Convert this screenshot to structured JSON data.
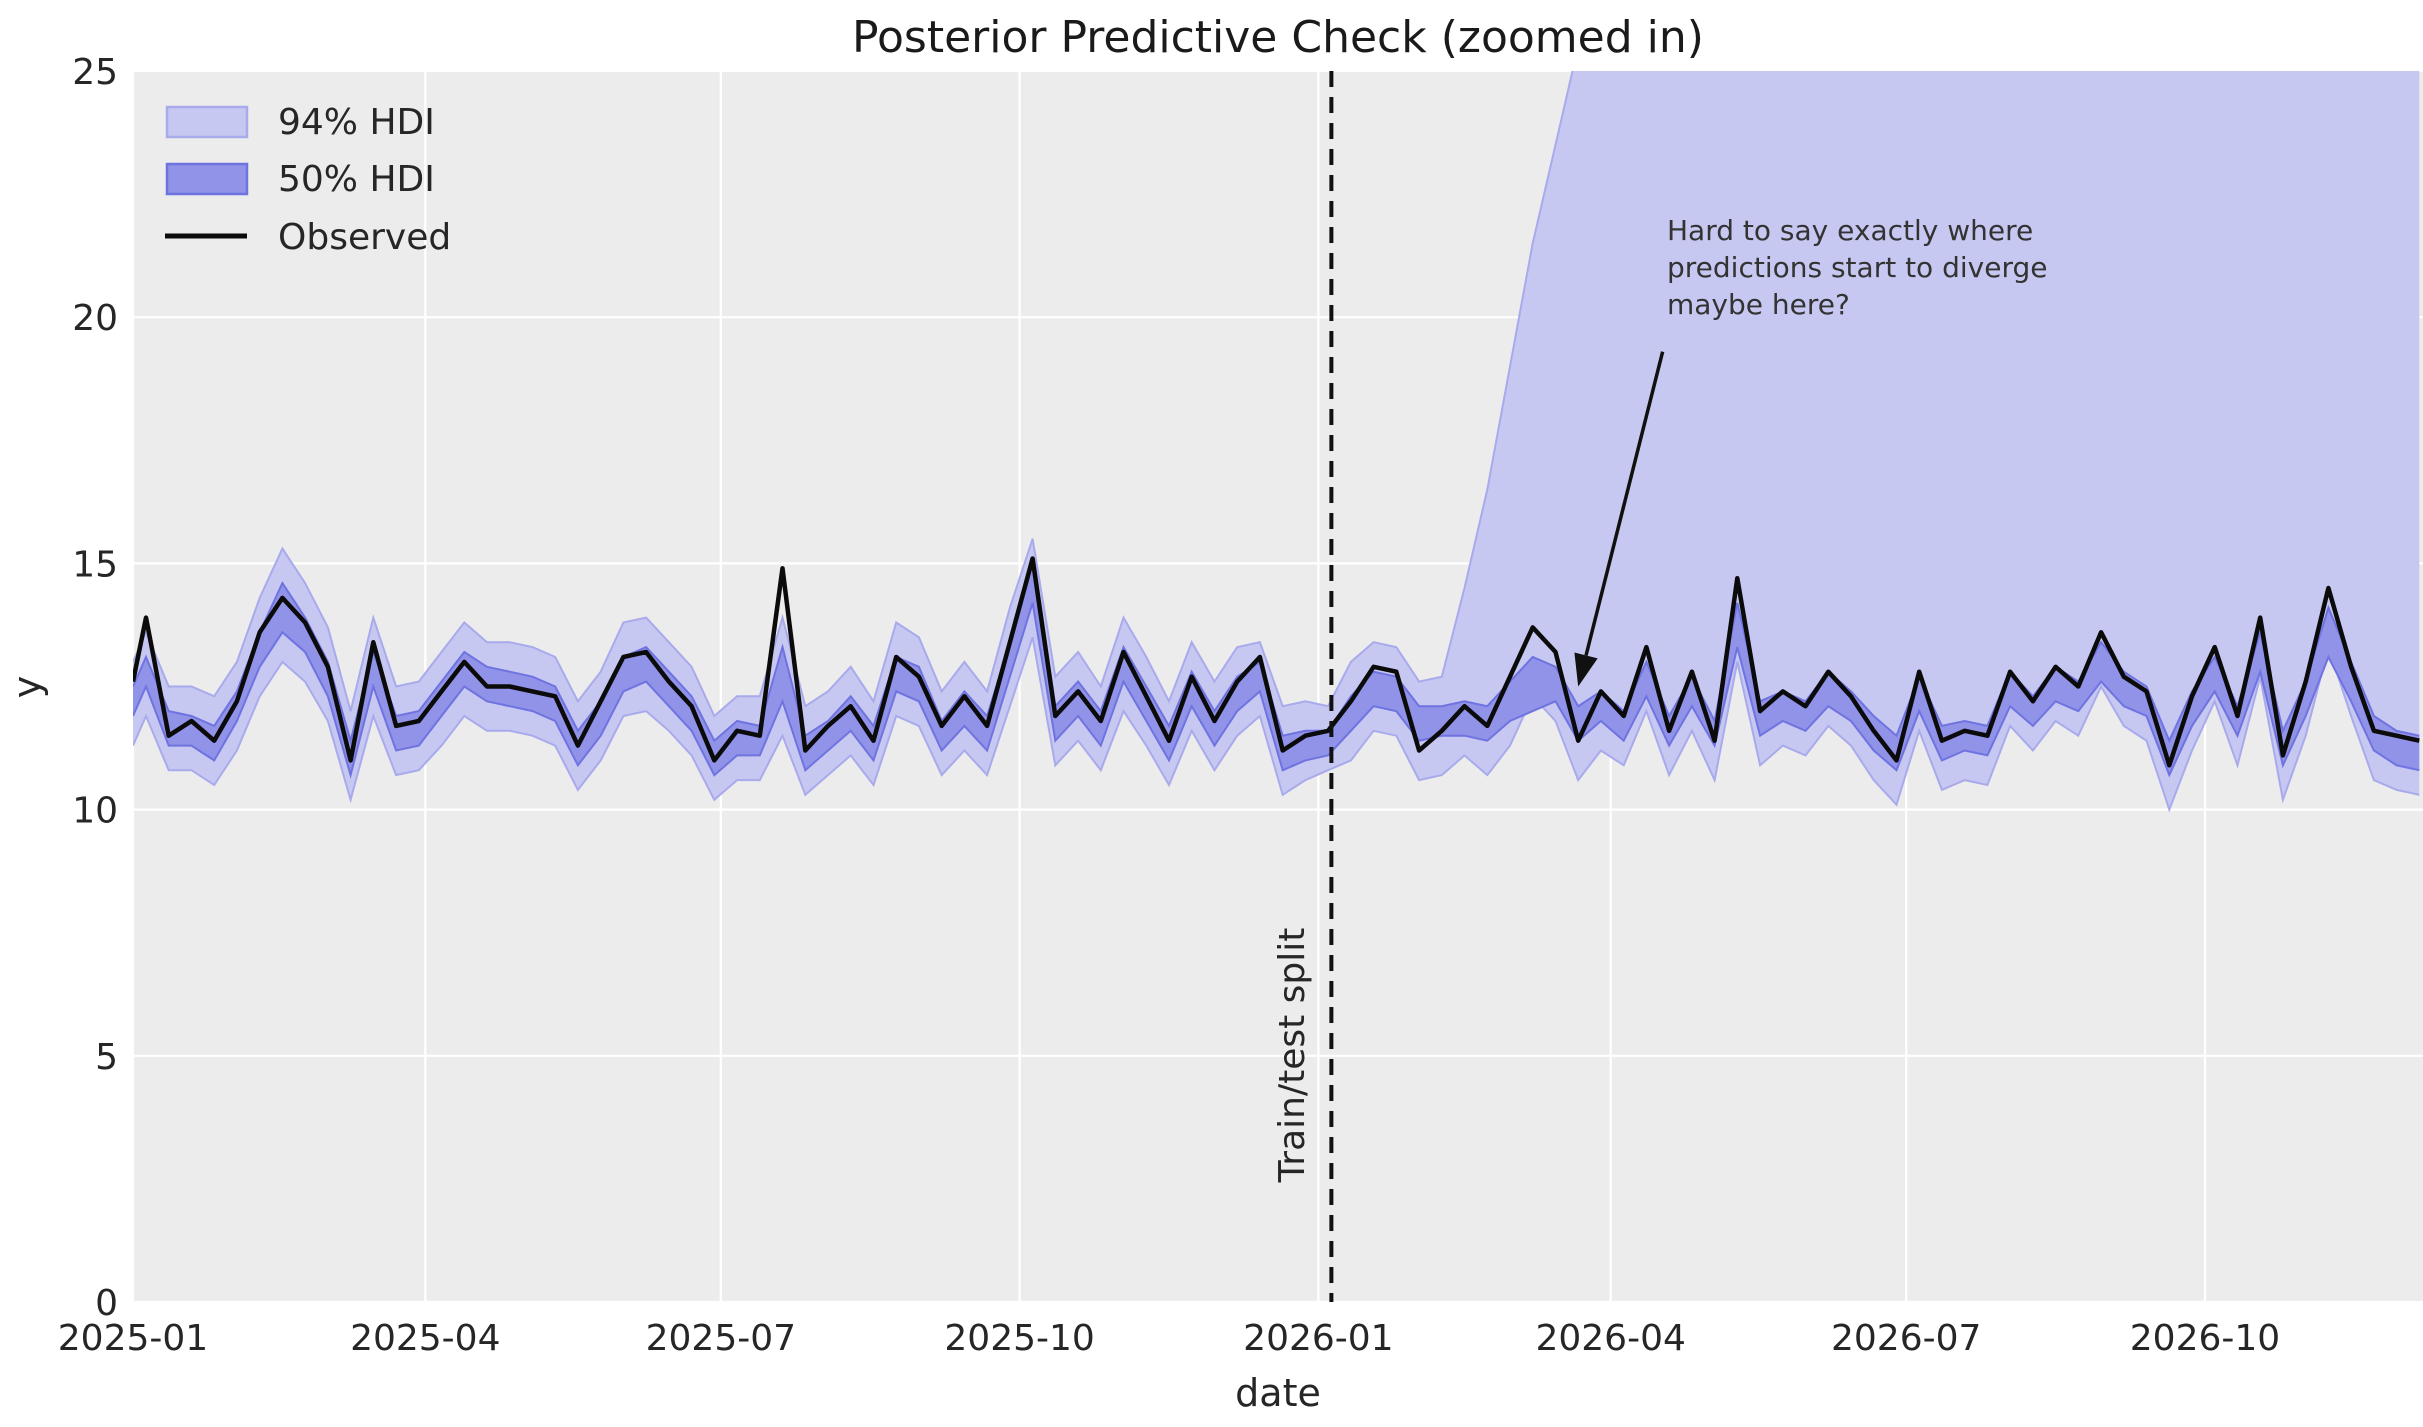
{
  "colors": {
    "figure_bg": "#ffffff",
    "axes_bg": "#ececec",
    "grid": "#ffffff",
    "observed": "#0b0b0b",
    "hdi94_fill": "#c7c8f1",
    "hdi94_edge": "#a8aaec",
    "hdi50_fill": "#9093e8",
    "hdi50_edge": "#6f73e0",
    "split_line": "#111111",
    "text": "#262626"
  },
  "chart_data": {
    "type": "line",
    "title": "Posterior Predictive Check (zoomed in)",
    "xlabel": "date",
    "ylabel": "y",
    "ylim": [
      0,
      25
    ],
    "grid": true,
    "legend_position": "upper left",
    "yticks": [
      0,
      5,
      10,
      15,
      20,
      25
    ],
    "xticks": [
      {
        "label": "2025-01",
        "day": 0
      },
      {
        "label": "2025-04",
        "day": 90
      },
      {
        "label": "2025-07",
        "day": 181
      },
      {
        "label": "2025-10",
        "day": 273
      },
      {
        "label": "2026-01",
        "day": 365
      },
      {
        "label": "2026-04",
        "day": 455
      },
      {
        "label": "2026-07",
        "day": 546
      },
      {
        "label": "2026-10",
        "day": 638
      }
    ],
    "legend": [
      {
        "label": "94% HDI",
        "swatch": "hdi94"
      },
      {
        "label": "50% HDI",
        "swatch": "hdi50"
      },
      {
        "label": "Observed",
        "swatch": "line"
      }
    ],
    "split": {
      "label": "Train/test split",
      "day": 369
    },
    "annotation": {
      "lines": [
        "Hard to say exactly where",
        "predictions start to diverge",
        "maybe here?"
      ],
      "arrow": {
        "from_day": 471,
        "from_y": 19.3,
        "to_day": 445,
        "to_y": 12.5
      }
    },
    "x_axis_origin": "2025-01-01",
    "x_start_date": "2025-01-05",
    "x_step_days": 7,
    "lead_in": {
      "day": 0,
      "obs": 12.6,
      "hdi94_lower": 11.3,
      "hdi94_upper": 13.0,
      "hdi50_lower": 11.9,
      "hdi50_upper": 12.5
    },
    "observed": [
      13.9,
      11.5,
      11.8,
      11.4,
      12.2,
      13.6,
      14.3,
      13.8,
      12.9,
      11.0,
      13.4,
      11.7,
      11.8,
      12.4,
      13.0,
      12.5,
      12.5,
      12.4,
      12.3,
      11.3,
      12.2,
      13.1,
      13.2,
      12.6,
      12.1,
      11.0,
      11.6,
      11.5,
      14.9,
      11.2,
      11.7,
      12.1,
      11.4,
      13.1,
      12.7,
      11.7,
      12.3,
      11.7,
      13.4,
      15.1,
      11.9,
      12.4,
      11.8,
      13.2,
      12.3,
      11.4,
      12.7,
      11.8,
      12.6,
      13.1,
      11.2,
      11.5,
      11.6,
      12.2,
      12.9,
      12.8,
      11.2,
      11.6,
      12.1,
      11.7,
      12.7,
      13.7,
      13.2,
      11.4,
      12.4,
      11.9,
      13.3,
      11.6,
      12.8,
      11.4,
      14.7,
      12.0,
      12.4,
      12.1,
      12.8,
      12.3,
      11.6,
      11.0,
      12.8,
      11.4,
      11.6,
      11.5,
      12.8,
      12.2,
      12.9,
      12.5,
      13.6,
      12.7,
      12.4,
      10.9,
      12.3,
      13.3,
      11.9,
      13.9,
      11.1,
      12.6,
      14.5,
      12.9,
      11.6,
      11.5,
      11.4
    ],
    "hdi94_upper": [
      13.6,
      12.5,
      12.5,
      12.3,
      13.0,
      14.3,
      15.3,
      14.6,
      13.7,
      12.0,
      13.9,
      12.5,
      12.6,
      13.2,
      13.8,
      13.4,
      13.4,
      13.3,
      13.1,
      12.2,
      12.8,
      13.8,
      13.9,
      13.4,
      12.9,
      11.9,
      12.3,
      12.3,
      13.9,
      12.1,
      12.4,
      12.9,
      12.2,
      13.8,
      13.5,
      12.4,
      13.0,
      12.4,
      14.1,
      15.5,
      12.7,
      13.2,
      12.5,
      13.9,
      13.1,
      12.2,
      13.4,
      12.6,
      13.3,
      13.4,
      12.1,
      12.2,
      12.1,
      13.0,
      13.4,
      13.3,
      12.6,
      12.7,
      14.5,
      16.5,
      19.0,
      21.5,
      23.5,
      25.5,
      27.0,
      28.0,
      29.0,
      30.0,
      30.5,
      31.0,
      31.5,
      32.0,
      32.0,
      32.5,
      32.5,
      33.0,
      33.0,
      33.0,
      33.0,
      33.0,
      33.0,
      33.0,
      33.0,
      33.0,
      33.0,
      32.5,
      32.5,
      32.0,
      32.0,
      31.5,
      31.0,
      30.5,
      30.0,
      29.5,
      29.0,
      28.5,
      28.0,
      27.5,
      27.0,
      26.5,
      26.0
    ],
    "hdi94_lower": [
      11.9,
      10.8,
      10.8,
      10.5,
      11.2,
      12.3,
      13.0,
      12.6,
      11.8,
      10.2,
      11.9,
      10.7,
      10.8,
      11.3,
      11.9,
      11.6,
      11.6,
      11.5,
      11.3,
      10.4,
      11.0,
      11.9,
      12.0,
      11.6,
      11.1,
      10.2,
      10.6,
      10.6,
      11.5,
      10.3,
      10.7,
      11.1,
      10.5,
      11.9,
      11.7,
      10.7,
      11.2,
      10.7,
      12.1,
      13.5,
      10.9,
      11.4,
      10.8,
      12.0,
      11.3,
      10.5,
      11.6,
      10.8,
      11.5,
      11.9,
      10.3,
      10.6,
      10.8,
      11.0,
      11.6,
      11.5,
      10.6,
      10.7,
      11.1,
      10.7,
      11.3,
      12.3,
      11.8,
      10.6,
      11.2,
      10.9,
      12.0,
      10.7,
      11.6,
      10.6,
      13.0,
      10.9,
      11.3,
      11.1,
      11.7,
      11.3,
      10.6,
      10.1,
      11.6,
      10.4,
      10.6,
      10.5,
      11.7,
      11.2,
      11.8,
      11.5,
      12.5,
      11.7,
      11.4,
      10.0,
      11.2,
      12.2,
      10.9,
      12.7,
      10.2,
      11.5,
      13.3,
      11.9,
      10.6,
      10.4,
      10.3
    ],
    "hdi50_upper": [
      13.1,
      12.0,
      11.9,
      11.7,
      12.4,
      13.6,
      14.6,
      13.9,
      13.0,
      11.4,
      13.2,
      11.9,
      12.0,
      12.6,
      13.2,
      12.9,
      12.8,
      12.7,
      12.5,
      11.6,
      12.2,
      13.1,
      13.3,
      12.8,
      12.3,
      11.4,
      11.8,
      11.7,
      13.3,
      11.5,
      11.8,
      12.3,
      11.7,
      13.1,
      12.9,
      11.8,
      12.4,
      11.9,
      13.4,
      15.0,
      12.1,
      12.6,
      12.0,
      13.3,
      12.5,
      11.7,
      12.8,
      12.0,
      12.7,
      13.0,
      11.5,
      11.6,
      11.6,
      12.3,
      12.8,
      12.7,
      12.1,
      12.1,
      12.2,
      12.1,
      12.6,
      13.1,
      12.9,
      12.1,
      12.4,
      12.0,
      13.0,
      11.9,
      12.7,
      11.8,
      14.2,
      12.2,
      12.4,
      12.2,
      12.8,
      12.4,
      11.9,
      11.5,
      12.7,
      11.7,
      11.8,
      11.7,
      12.8,
      12.3,
      12.9,
      12.6,
      13.4,
      12.8,
      12.5,
      11.4,
      12.4,
      13.1,
      12.1,
      13.6,
      11.6,
      12.6,
      14.1,
      13.0,
      11.9,
      11.6,
      11.5
    ],
    "hdi50_lower": [
      12.5,
      11.3,
      11.3,
      11.0,
      11.8,
      12.9,
      13.6,
      13.2,
      12.3,
      10.7,
      12.5,
      11.2,
      11.3,
      11.9,
      12.5,
      12.2,
      12.1,
      12.0,
      11.8,
      10.9,
      11.5,
      12.4,
      12.6,
      12.1,
      11.6,
      10.7,
      11.1,
      11.1,
      12.2,
      10.8,
      11.2,
      11.6,
      11.0,
      12.4,
      12.2,
      11.2,
      11.7,
      11.2,
      12.7,
      14.2,
      11.4,
      11.9,
      11.3,
      12.6,
      11.8,
      11.0,
      12.1,
      11.3,
      12.0,
      12.4,
      10.8,
      11.0,
      11.1,
      11.6,
      12.1,
      12.0,
      11.4,
      11.5,
      11.5,
      11.4,
      11.8,
      12.0,
      12.2,
      11.4,
      11.8,
      11.4,
      12.3,
      11.3,
      12.1,
      11.3,
      13.3,
      11.5,
      11.8,
      11.6,
      12.1,
      11.8,
      11.2,
      10.8,
      12.0,
      11.0,
      11.2,
      11.1,
      12.1,
      11.7,
      12.2,
      12.0,
      12.6,
      12.1,
      11.9,
      10.7,
      11.7,
      12.4,
      11.5,
      12.8,
      10.9,
      11.9,
      13.1,
      12.2,
      11.2,
      10.9,
      10.8
    ]
  }
}
